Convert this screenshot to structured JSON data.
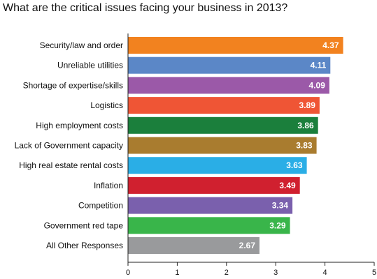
{
  "chart_data": {
    "type": "bar",
    "orientation": "horizontal",
    "title": "What are the critical issues facing your business in 2013?",
    "categories": [
      "Security/law and order",
      "Unreliable utilities",
      "Shortage of expertise/skills",
      "Logistics",
      "High employment costs",
      "Lack of Government capacity",
      "High real estate rental costs",
      "Inflation",
      "Competition",
      "Government red tape",
      "All Other Responses"
    ],
    "values": [
      4.37,
      4.11,
      4.09,
      3.89,
      3.86,
      3.83,
      3.63,
      3.49,
      3.34,
      3.29,
      2.67
    ],
    "value_labels": [
      "4.37",
      "4.11",
      "4.09",
      "3.89",
      "3.86",
      "3.83",
      "3.63",
      "3.49",
      "3.34",
      "3.29",
      "2.67"
    ],
    "colors": [
      "#f2821f",
      "#5b87c7",
      "#9b59a8",
      "#ef5535",
      "#1b7f3c",
      "#a97c2f",
      "#2aaee6",
      "#d0202f",
      "#7a60ad",
      "#39b54a",
      "#999a9c"
    ],
    "xlim": [
      0,
      5
    ],
    "xticks": [
      "0",
      "1",
      "2",
      "3",
      "4",
      "5"
    ],
    "xlabel": "",
    "ylabel": "",
    "grid": false
  }
}
